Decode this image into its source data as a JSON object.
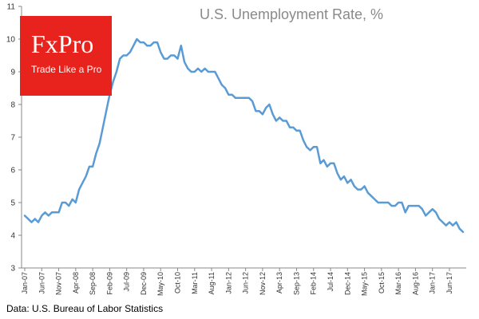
{
  "logo": {
    "brand": "FxPro",
    "tagline": "Trade Like a Pro",
    "background_color": "#e8221c"
  },
  "source_note": "Data: U.S. Bureau of Labor Statistics",
  "chart_data": {
    "type": "line",
    "title": "U.S. Unemployment Rate, %",
    "xlabel": "",
    "ylabel": "",
    "ylim": [
      3,
      11
    ],
    "yticks": [
      3,
      4,
      5,
      6,
      7,
      8,
      9,
      10,
      11
    ],
    "grid": false,
    "line_color": "#5b9bd5",
    "x_tick_labels": [
      "Jan-07",
      "Jun-07",
      "Nov-07",
      "Apr-08",
      "Sep-08",
      "Feb-09",
      "Jul-09",
      "Dec-09",
      "May-10",
      "Oct-10",
      "Mar-11",
      "Aug-11",
      "Jan-12",
      "Jun-12",
      "Nov-12",
      "Apr-13",
      "Sep-13",
      "Feb-14",
      "Jul-14",
      "Dec-14",
      "May-15",
      "Oct-15",
      "Mar-16",
      "Aug-16",
      "Jan-17",
      "Jun-17"
    ],
    "x_start": "Jan-07",
    "x_end": "Nov-17",
    "series": [
      {
        "values": [
          4.6,
          4.5,
          4.4,
          4.5,
          4.4,
          4.6,
          4.7,
          4.6,
          4.7,
          4.7,
          4.7,
          5.0,
          5.0,
          4.9,
          5.1,
          5.0,
          5.4,
          5.6,
          5.8,
          6.1,
          6.1,
          6.5,
          6.8,
          7.3,
          7.8,
          8.3,
          8.7,
          9.0,
          9.4,
          9.5,
          9.5,
          9.6,
          9.8,
          10.0,
          9.9,
          9.9,
          9.8,
          9.8,
          9.9,
          9.9,
          9.6,
          9.4,
          9.4,
          9.5,
          9.5,
          9.4,
          9.8,
          9.3,
          9.1,
          9.0,
          9.0,
          9.1,
          9.0,
          9.1,
          9.0,
          9.0,
          9.0,
          8.8,
          8.6,
          8.5,
          8.3,
          8.3,
          8.2,
          8.2,
          8.2,
          8.2,
          8.2,
          8.1,
          7.8,
          7.8,
          7.7,
          7.9,
          8.0,
          7.7,
          7.5,
          7.6,
          7.5,
          7.5,
          7.3,
          7.3,
          7.2,
          7.2,
          6.9,
          6.7,
          6.6,
          6.7,
          6.7,
          6.2,
          6.3,
          6.1,
          6.2,
          6.2,
          5.9,
          5.7,
          5.8,
          5.6,
          5.7,
          5.5,
          5.4,
          5.4,
          5.5,
          5.3,
          5.2,
          5.1,
          5.0,
          5.0,
          5.0,
          5.0,
          4.9,
          4.9,
          5.0,
          5.0,
          4.7,
          4.9,
          4.9,
          4.9,
          4.9,
          4.8,
          4.6,
          4.7,
          4.8,
          4.7,
          4.5,
          4.4,
          4.3,
          4.4,
          4.3,
          4.4,
          4.2,
          4.1
        ]
      }
    ]
  }
}
